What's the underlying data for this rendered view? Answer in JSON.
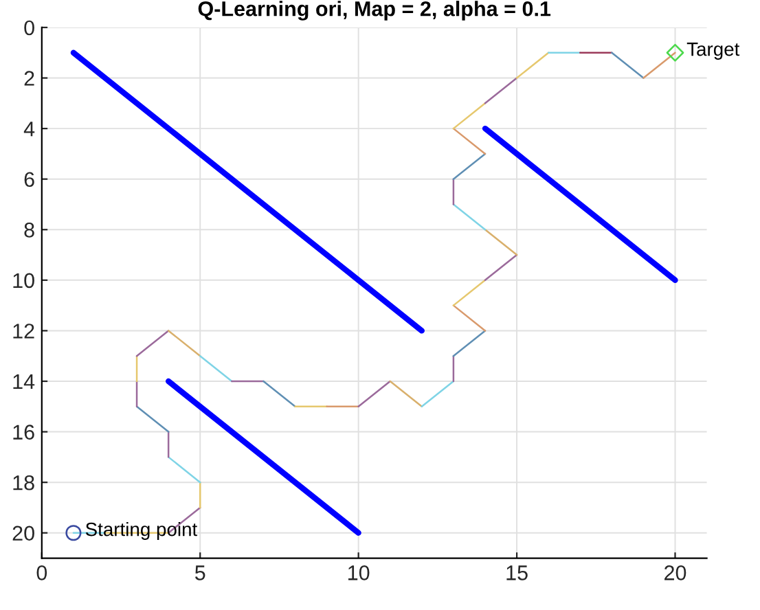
{
  "chart_data": {
    "type": "line",
    "title": "Q-Learning ori, Map = 2, alpha = 0.1",
    "xlim": [
      0,
      21
    ],
    "ylim": [
      21,
      0
    ],
    "xticks": [
      0,
      5,
      10,
      15,
      20
    ],
    "yticks": [
      0,
      2,
      4,
      6,
      8,
      10,
      12,
      14,
      16,
      18,
      20
    ],
    "grid": true,
    "series": [
      {
        "color": "#0000ff",
        "x": [
          1,
          12
        ],
        "values": [
          1,
          12
        ]
      },
      {
        "color": "#0000ff",
        "x": [
          14,
          20
        ],
        "values": [
          4,
          10
        ]
      },
      {
        "color": "#0000ff",
        "x": [
          4,
          10
        ],
        "values": [
          14,
          20
        ]
      },
      {
        "color": "#7fd4e6",
        "x": [
          1,
          2
        ],
        "values": [
          20,
          20
        ]
      },
      {
        "color": "#e6c86e",
        "x": [
          2,
          3,
          4
        ],
        "values": [
          20,
          20,
          20
        ]
      },
      {
        "color": "#9b6a9b",
        "x": [
          4,
          5
        ],
        "values": [
          20,
          19
        ]
      },
      {
        "color": "#e6c86e",
        "x": [
          5,
          5
        ],
        "values": [
          19,
          18
        ]
      },
      {
        "color": "#7fd4e6",
        "x": [
          5,
          4
        ],
        "values": [
          18,
          17
        ]
      },
      {
        "color": "#9b6a9b",
        "x": [
          4,
          4
        ],
        "values": [
          17,
          16
        ]
      },
      {
        "color": "#5f8fb4",
        "x": [
          4,
          3
        ],
        "values": [
          16,
          15
        ]
      },
      {
        "color": "#9b6a9b",
        "x": [
          3,
          3
        ],
        "values": [
          15,
          14
        ]
      },
      {
        "color": "#e6c86e",
        "x": [
          3,
          3
        ],
        "values": [
          14,
          13
        ]
      },
      {
        "color": "#9b6a9b",
        "x": [
          3,
          4
        ],
        "values": [
          13,
          12
        ]
      },
      {
        "color": "#d9b06c",
        "x": [
          4,
          5
        ],
        "values": [
          12,
          13
        ]
      },
      {
        "color": "#7fd4e6",
        "x": [
          5,
          6
        ],
        "values": [
          13,
          14
        ]
      },
      {
        "color": "#9b6a9b",
        "x": [
          6,
          7
        ],
        "values": [
          14,
          14
        ]
      },
      {
        "color": "#5f8fb4",
        "x": [
          7,
          8
        ],
        "values": [
          14,
          15
        ]
      },
      {
        "color": "#e6c86e",
        "x": [
          8,
          9
        ],
        "values": [
          15,
          15
        ]
      },
      {
        "color": "#d99a6c",
        "x": [
          9,
          10
        ],
        "values": [
          15,
          15
        ]
      },
      {
        "color": "#9b6a9b",
        "x": [
          10,
          11
        ],
        "values": [
          15,
          14
        ]
      },
      {
        "color": "#d9b06c",
        "x": [
          11,
          12
        ],
        "values": [
          14,
          15
        ]
      },
      {
        "color": "#7fd4e6",
        "x": [
          12,
          13
        ],
        "values": [
          15,
          14
        ]
      },
      {
        "color": "#9b6a9b",
        "x": [
          13,
          13
        ],
        "values": [
          14,
          13
        ]
      },
      {
        "color": "#5f8fb4",
        "x": [
          13,
          14
        ],
        "values": [
          13,
          12
        ]
      },
      {
        "color": "#d99a6c",
        "x": [
          14,
          13
        ],
        "values": [
          12,
          11
        ]
      },
      {
        "color": "#e6c86e",
        "x": [
          13,
          14
        ],
        "values": [
          11,
          10
        ]
      },
      {
        "color": "#9b6a9b",
        "x": [
          14,
          15
        ],
        "values": [
          10,
          9
        ]
      },
      {
        "color": "#d9b06c",
        "x": [
          15,
          14
        ],
        "values": [
          9,
          8
        ]
      },
      {
        "color": "#7fd4e6",
        "x": [
          14,
          13
        ],
        "values": [
          8,
          7
        ]
      },
      {
        "color": "#9b6a9b",
        "x": [
          13,
          13
        ],
        "values": [
          7,
          6
        ]
      },
      {
        "color": "#5f8fb4",
        "x": [
          13,
          14
        ],
        "values": [
          6,
          5
        ]
      },
      {
        "color": "#d99a6c",
        "x": [
          14,
          13
        ],
        "values": [
          5,
          4
        ]
      },
      {
        "color": "#e6c86e",
        "x": [
          13,
          14
        ],
        "values": [
          4,
          3
        ]
      },
      {
        "color": "#9b6a9b",
        "x": [
          14,
          15
        ],
        "values": [
          3,
          2
        ]
      },
      {
        "color": "#e6c86e",
        "x": [
          15,
          16
        ],
        "values": [
          2,
          1
        ]
      },
      {
        "color": "#7fd4e6",
        "x": [
          16,
          17
        ],
        "values": [
          1,
          1
        ]
      },
      {
        "color": "#9b3a5a",
        "x": [
          17,
          18
        ],
        "values": [
          1,
          1
        ]
      },
      {
        "color": "#5f8fb4",
        "x": [
          18,
          19
        ],
        "values": [
          1,
          2
        ]
      },
      {
        "color": "#d99a6c",
        "x": [
          19,
          20
        ],
        "values": [
          2,
          1
        ]
      },
      {
        "type": "scatter",
        "marker": "circle",
        "color": "#3a4aa0",
        "x": [
          1
        ],
        "values": [
          20
        ]
      },
      {
        "type": "scatter",
        "marker": "diamond",
        "color": "#4cd94c",
        "x": [
          20
        ],
        "values": [
          1
        ]
      }
    ],
    "annotations": [
      {
        "text": "Starting point",
        "x": 1,
        "y": 20
      },
      {
        "text": "Target",
        "x": 20,
        "y": 1
      }
    ]
  }
}
